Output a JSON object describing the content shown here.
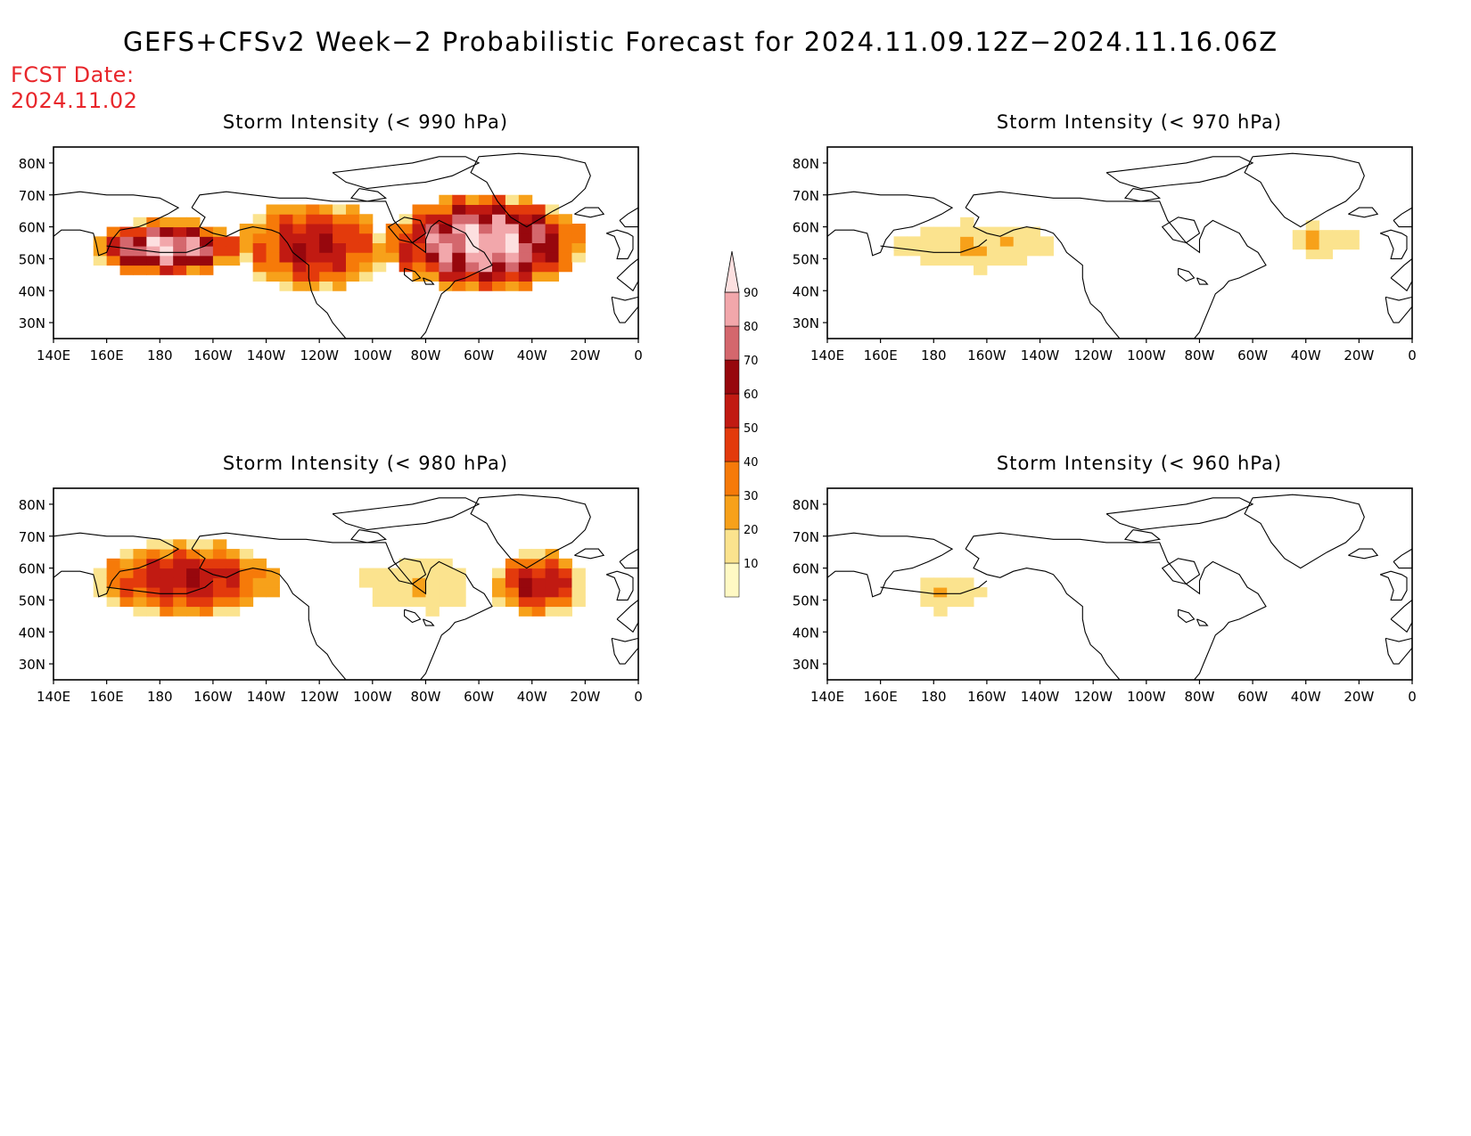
{
  "title": "GEFS+CFSv2 Week−2 Probabilistic Forecast for 2024.11.09.12Z−2024.11.16.06Z",
  "fcst_date": {
    "label": "FCST Date:",
    "value": "2024.11.02"
  },
  "panels": [
    {
      "title": "Storm Intensity (< 990 hPa)"
    },
    {
      "title": "Storm Intensity (< 970 hPa)"
    },
    {
      "title": "Storm Intensity (< 980 hPa)"
    },
    {
      "title": "Storm Intensity (< 960 hPa)"
    }
  ],
  "lon_ticks": [
    "140E",
    "160E",
    "180",
    "160W",
    "140W",
    "120W",
    "100W",
    "80W",
    "60W",
    "40W",
    "20W",
    "0"
  ],
  "lat_ticks": [
    "80N",
    "70N",
    "60N",
    "50N",
    "40N",
    "30N"
  ],
  "colorbar": {
    "levels": [
      "10",
      "20",
      "30",
      "40",
      "50",
      "60",
      "70",
      "80",
      "90"
    ],
    "colors": [
      "#fff9c4",
      "#fbe38e",
      "#f7a11a",
      "#f67a09",
      "#e33a0c",
      "#c11a12",
      "#97070d",
      "#d4676d",
      "#f2a7ab",
      "#fde0e0"
    ]
  },
  "chart_data": [
    {
      "type": "heatmap",
      "title": "Storm Intensity (< 990 hPa)",
      "xlim": [
        140,
        360
      ],
      "ylim": [
        25,
        85
      ],
      "regions": [
        {
          "lon": [
            155,
            210
          ],
          "lat": [
            45,
            62
          ],
          "max_pct": 90
        },
        {
          "lon": [
            210,
            265
          ],
          "lat": [
            40,
            68
          ],
          "max_pct": 60
        },
        {
          "lon": [
            265,
            340
          ],
          "lat": [
            40,
            70
          ],
          "max_pct": 90
        }
      ]
    },
    {
      "type": "heatmap",
      "title": "Storm Intensity (< 970 hPa)",
      "xlim": [
        140,
        360
      ],
      "ylim": [
        25,
        85
      ],
      "regions": [
        {
          "lon": [
            160,
            230
          ],
          "lat": [
            45,
            63
          ],
          "max_pct": 20
        },
        {
          "lon": [
            310,
            340
          ],
          "lat": [
            50,
            62
          ],
          "max_pct": 20
        }
      ]
    },
    {
      "type": "heatmap",
      "title": "Storm Intensity (< 980 hPa)",
      "xlim": [
        140,
        360
      ],
      "ylim": [
        25,
        85
      ],
      "regions": [
        {
          "lon": [
            155,
            225
          ],
          "lat": [
            45,
            68
          ],
          "max_pct": 60
        },
        {
          "lon": [
            250,
            305
          ],
          "lat": [
            45,
            65
          ],
          "max_pct": 20
        },
        {
          "lon": [
            305,
            340
          ],
          "lat": [
            45,
            65
          ],
          "max_pct": 60
        }
      ]
    },
    {
      "type": "heatmap",
      "title": "Storm Intensity (< 960 hPa)",
      "xlim": [
        140,
        360
      ],
      "ylim": [
        25,
        85
      ],
      "regions": [
        {
          "lon": [
            170,
            200
          ],
          "lat": [
            45,
            60
          ],
          "max_pct": 20
        }
      ]
    }
  ]
}
